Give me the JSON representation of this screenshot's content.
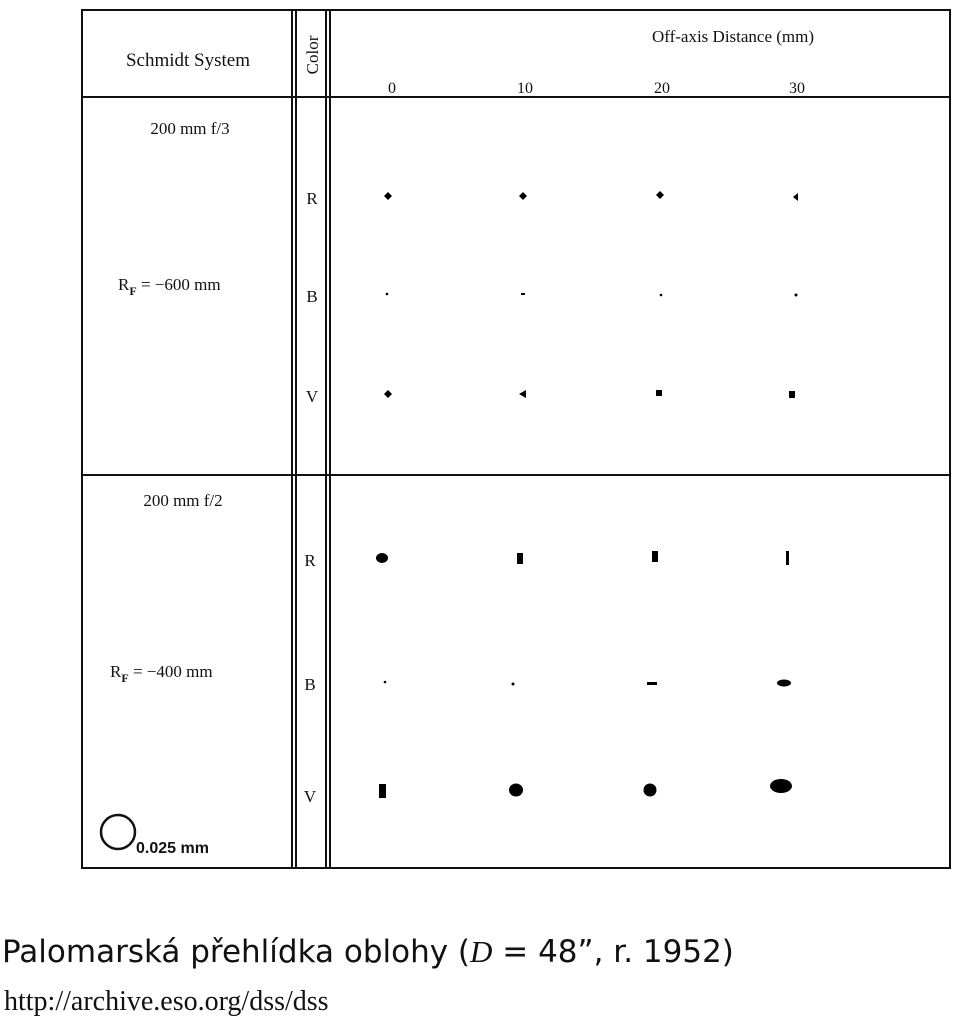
{
  "table": {
    "header": {
      "system": "Schmidt System",
      "color": "Color",
      "distance": "Off-axis Distance (mm)",
      "columns": [
        "0",
        "10",
        "20",
        "30"
      ]
    },
    "groups": [
      {
        "system": "200 mm f/3",
        "radius": {
          "symbol": "R",
          "sub": "F",
          "value": " = −600 mm"
        },
        "colors": [
          "R",
          "B",
          "V"
        ]
      },
      {
        "system": "200 mm f/2",
        "radius": {
          "symbol": "R",
          "sub": "F",
          "value": " = −400 mm"
        },
        "colors": [
          "R",
          "B",
          "V"
        ]
      }
    ],
    "scale": "0.025 mm"
  },
  "caption": {
    "before": "Palomarská přehlídka oblohy (",
    "variable": "D",
    "after": " = 48”, r. 1952)"
  },
  "url": "http://archive.eso.org/dss/dss"
}
